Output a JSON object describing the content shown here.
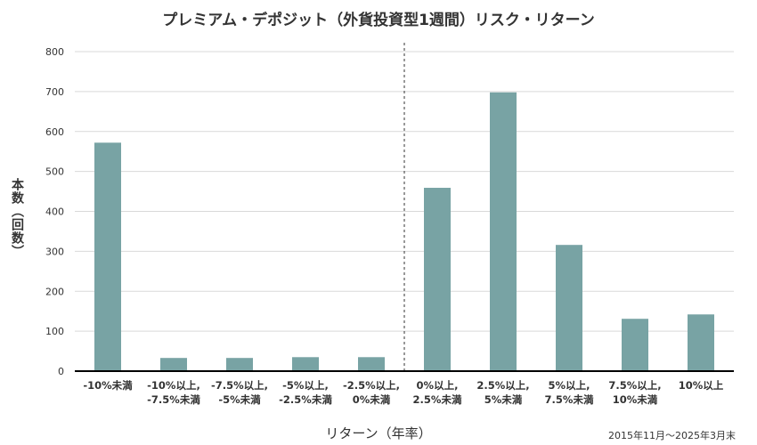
{
  "title": "プレミアム・デポジット（外貨投資型1週間）リスク・リターン",
  "note": "2015年11月〜2025年3月末",
  "colors": {
    "bar": "#78a3a4",
    "grid": "#d9d9d9",
    "axis": "#000000",
    "divider": "#333333"
  },
  "chart_data": {
    "type": "bar",
    "title": "プレミアム・デポジット（外貨投資型1週間）リスク・リターン",
    "xlabel": "リターン（年率）",
    "ylabel": "本数（回数）",
    "ylim": [
      0,
      800
    ],
    "yticks": [
      0,
      100,
      200,
      300,
      400,
      500,
      600,
      700,
      800
    ],
    "grid": true,
    "divider_after_category_index": 4,
    "categories": [
      [
        "-10%未満"
      ],
      [
        "-10%以上,",
        "-7.5%未満"
      ],
      [
        "-7.5%以上,",
        "-5%未満"
      ],
      [
        "-5%以上,",
        "-2.5%未満"
      ],
      [
        "-2.5%以上,",
        "0%未満"
      ],
      [
        "0%以上,",
        "2.5%未満"
      ],
      [
        "2.5%以上,",
        "5%未満"
      ],
      [
        "5%以上,",
        "7.5%未満"
      ],
      [
        "7.5%以上,",
        "10%未満"
      ],
      [
        "10%以上"
      ]
    ],
    "values": [
      572,
      33,
      33,
      35,
      35,
      459,
      698,
      316,
      131,
      142
    ]
  }
}
